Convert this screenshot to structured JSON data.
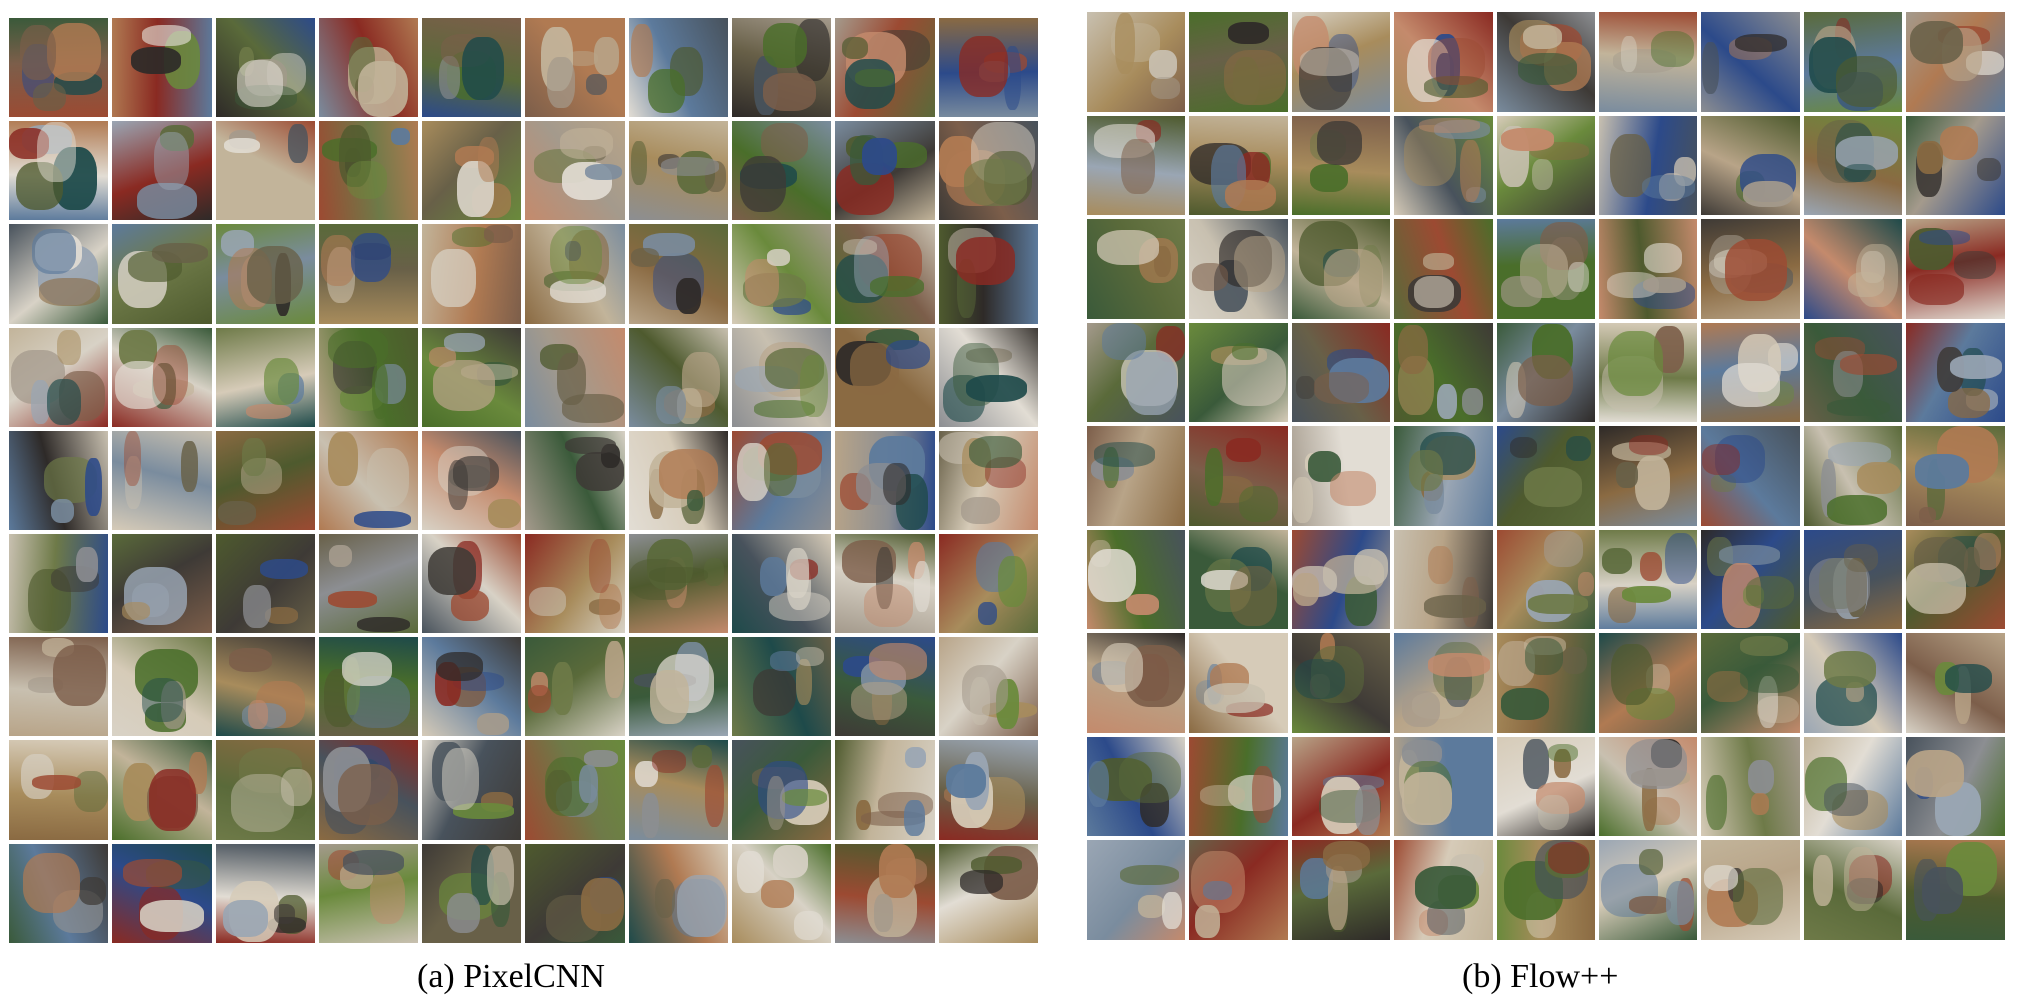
{
  "figure": {
    "panels": [
      {
        "id": "a",
        "caption": "(a) PixelCNN",
        "grid_columns": 10,
        "grid_rows": 9
      },
      {
        "id": "b",
        "caption": "(b) Flow++",
        "grid_columns": 9,
        "grid_rows": 9
      }
    ],
    "palette": [
      "#5a6a3a",
      "#8a6a42",
      "#b8a488",
      "#3e3a36",
      "#9aa6b4",
      "#c8c0b0",
      "#6e7a48",
      "#2c4a8a",
      "#a49a8c",
      "#7c5e4a",
      "#4e5a2e",
      "#d6cbb8",
      "#2e2a28",
      "#8c8e92",
      "#b07a52",
      "#5c7a9c",
      "#6a8a3c",
      "#c2b49a",
      "#3a5a3a",
      "#9c4a32",
      "#e2ddd4",
      "#48525c",
      "#a88c5c",
      "#7a8c9e",
      "#1e4a4a",
      "#c48a6c",
      "#686048",
      "#4a6e2a",
      "#d8d2c6",
      "#8a2a22"
    ]
  }
}
